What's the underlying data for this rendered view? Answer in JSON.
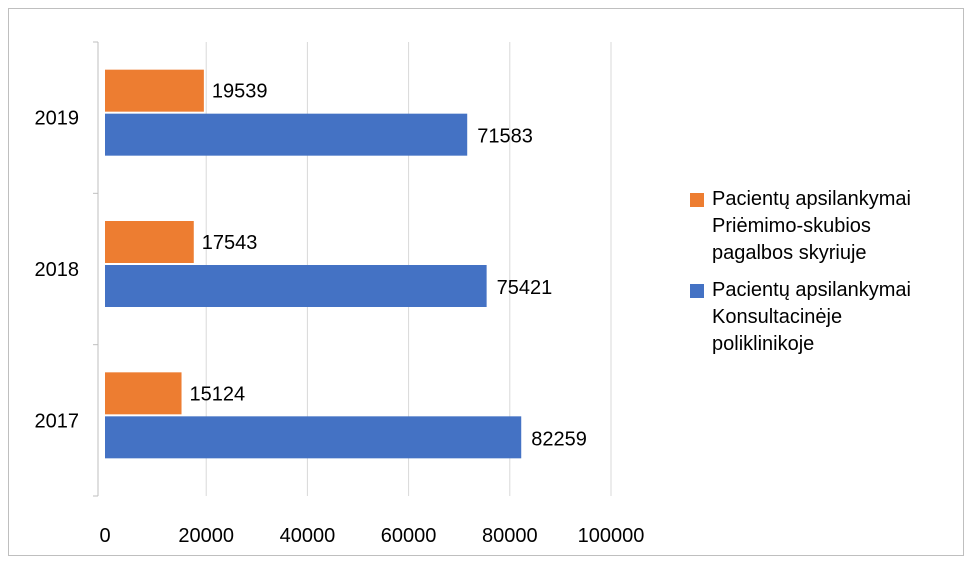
{
  "chart_data": {
    "type": "bar",
    "orientation": "horizontal",
    "categories": [
      "2017",
      "2018",
      "2019"
    ],
    "series": [
      {
        "name": "Pacientų apsilankymai Priėmimo-skubios pagalbos  skyriuje",
        "name_lines": [
          "Pacientų apsilankymai",
          "Priėmimo-skubios",
          "pagalbos  skyriuje"
        ],
        "color": "#ed7d31",
        "values": [
          15124,
          17543,
          19539
        ]
      },
      {
        "name": "Pacientų apsilankymai Konsultacinėje poliklinikoje",
        "name_lines": [
          "Pacientų apsilankymai",
          "Konsultacinėje",
          "poliklinikoje"
        ],
        "color": "#4472c4",
        "values": [
          82259,
          75421,
          71583
        ]
      }
    ],
    "x_ticks": [
      "0",
      "20000",
      "40000",
      "60000",
      "80000",
      "100000"
    ],
    "xlim": [
      0,
      100000
    ],
    "grid": true,
    "legend_position": "right",
    "data_labels": true
  }
}
